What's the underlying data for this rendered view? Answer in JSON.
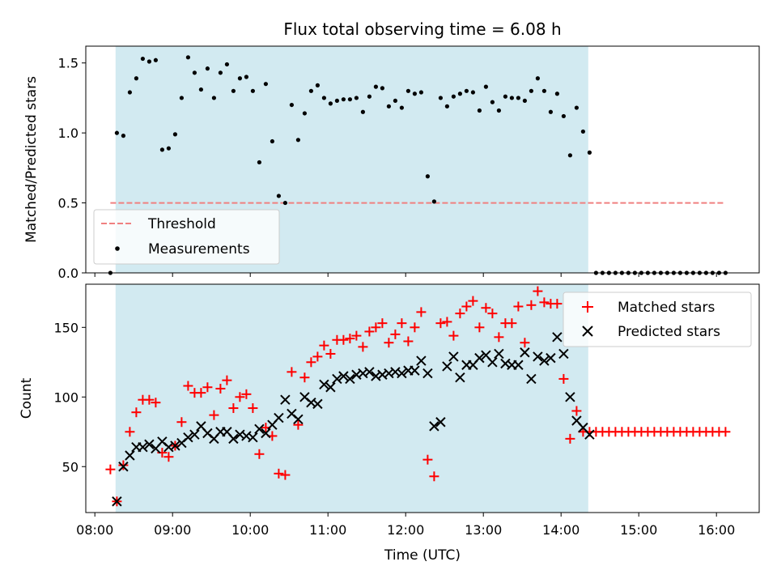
{
  "title": "Flux total observing time = 6.08 h",
  "chart_data": [
    {
      "type": "scatter",
      "ylabel": "Matched/Predicted stars",
      "ylim": [
        0,
        1.62
      ],
      "yticks": [
        "0.0",
        "0.5",
        "1.0",
        "1.5"
      ],
      "ytick_values": [
        0,
        0.5,
        1.0,
        1.5
      ],
      "xlim": [
        "07:53",
        "16:33"
      ],
      "shaded_span": [
        "08:16",
        "14:21"
      ],
      "shade_color": "#add8e6",
      "threshold": {
        "name": "Threshold",
        "value": 0.5,
        "x_range": [
          "08:12",
          "16:07"
        ],
        "color": "#f08080"
      },
      "legend": {
        "placement": "lower-left",
        "entries": [
          "Threshold",
          "Measurements"
        ]
      },
      "series": [
        {
          "name": "Measurements",
          "marker": "dot",
          "color": "#000000",
          "x": [
            "08:12",
            "08:17",
            "08:22",
            "08:27",
            "08:32",
            "08:37",
            "08:42",
            "08:47",
            "08:52",
            "08:57",
            "09:02",
            "09:07",
            "09:12",
            "09:17",
            "09:22",
            "09:27",
            "09:32",
            "09:37",
            "09:42",
            "09:47",
            "09:52",
            "09:57",
            "10:02",
            "10:07",
            "10:12",
            "10:17",
            "10:22",
            "10:27",
            "10:32",
            "10:37",
            "10:42",
            "10:47",
            "10:52",
            "10:57",
            "11:02",
            "11:07",
            "11:12",
            "11:17",
            "11:22",
            "11:27",
            "11:32",
            "11:37",
            "11:42",
            "11:47",
            "11:52",
            "11:57",
            "12:02",
            "12:07",
            "12:12",
            "12:17",
            "12:22",
            "12:27",
            "12:32",
            "12:37",
            "12:42",
            "12:47",
            "12:52",
            "12:57",
            "13:02",
            "13:07",
            "13:12",
            "13:17",
            "13:22",
            "13:27",
            "13:32",
            "13:37",
            "13:42",
            "13:47",
            "13:52",
            "13:57",
            "14:02",
            "14:07",
            "14:12",
            "14:17",
            "14:22",
            "14:27",
            "14:32",
            "14:37",
            "14:42",
            "14:47",
            "14:52",
            "14:57",
            "15:02",
            "15:07",
            "15:12",
            "15:17",
            "15:22",
            "15:27",
            "15:32",
            "15:37",
            "15:42",
            "15:47",
            "15:52",
            "15:57",
            "16:02",
            "16:07"
          ],
          "y": [
            0.0,
            1.0,
            0.98,
            1.29,
            1.39,
            1.53,
            1.51,
            1.52,
            0.88,
            0.89,
            0.99,
            1.25,
            1.54,
            1.43,
            1.31,
            1.46,
            1.25,
            1.43,
            1.49,
            1.3,
            1.39,
            1.4,
            1.3,
            0.79,
            1.35,
            0.94,
            0.55,
            0.5,
            1.2,
            0.95,
            1.14,
            1.3,
            1.34,
            1.25,
            1.21,
            1.23,
            1.24,
            1.24,
            1.25,
            1.15,
            1.26,
            1.33,
            1.32,
            1.19,
            1.23,
            1.18,
            1.3,
            1.28,
            1.29,
            0.69,
            0.51,
            1.25,
            1.19,
            1.26,
            1.28,
            1.3,
            1.29,
            1.16,
            1.33,
            1.22,
            1.16,
            1.26,
            1.25,
            1.25,
            1.23,
            1.3,
            1.39,
            1.3,
            1.15,
            1.28,
            1.12,
            0.84,
            1.18,
            1.01,
            0.86,
            0.0,
            0.0,
            0.0,
            0.0,
            0.0,
            0.0,
            0.0,
            0.0,
            0.0,
            0.0,
            0.0,
            0.0,
            0.0,
            0.0,
            0.0,
            0.0,
            0.0,
            0.0,
            0.0,
            0.0,
            0.0
          ]
        }
      ]
    },
    {
      "type": "scatter",
      "xlabel": "Time (UTC)",
      "ylabel": "Count",
      "ylim": [
        17,
        181
      ],
      "yticks": [
        "50",
        "100",
        "150"
      ],
      "ytick_values": [
        50,
        100,
        150
      ],
      "xlim": [
        "07:53",
        "16:33"
      ],
      "xticks": [
        "08:00",
        "09:00",
        "10:00",
        "11:00",
        "12:00",
        "13:00",
        "14:00",
        "15:00",
        "16:00"
      ],
      "shaded_span": [
        "08:16",
        "14:21"
      ],
      "shade_color": "#add8e6",
      "legend": {
        "placement": "upper-right",
        "entries": [
          "Matched stars",
          "Predicted stars"
        ]
      },
      "series": [
        {
          "name": "Matched stars",
          "marker": "plus",
          "color": "#ff0000",
          "x": [
            "08:12",
            "08:17",
            "08:22",
            "08:27",
            "08:32",
            "08:37",
            "08:42",
            "08:47",
            "08:52",
            "08:57",
            "09:02",
            "09:07",
            "09:12",
            "09:17",
            "09:22",
            "09:27",
            "09:32",
            "09:37",
            "09:42",
            "09:47",
            "09:52",
            "09:57",
            "10:02",
            "10:07",
            "10:12",
            "10:17",
            "10:22",
            "10:27",
            "10:32",
            "10:37",
            "10:42",
            "10:47",
            "10:52",
            "10:57",
            "11:02",
            "11:07",
            "11:12",
            "11:17",
            "11:22",
            "11:27",
            "11:32",
            "11:37",
            "11:42",
            "11:47",
            "11:52",
            "11:57",
            "12:02",
            "12:07",
            "12:12",
            "12:17",
            "12:22",
            "12:27",
            "12:32",
            "12:37",
            "12:42",
            "12:47",
            "12:52",
            "12:57",
            "13:02",
            "13:07",
            "13:12",
            "13:17",
            "13:22",
            "13:27",
            "13:32",
            "13:37",
            "13:42",
            "13:47",
            "13:52",
            "13:57",
            "14:02",
            "14:07",
            "14:12",
            "14:17",
            "14:22",
            "14:27",
            "14:32",
            "14:37",
            "14:42",
            "14:47",
            "14:52",
            "14:57",
            "15:02",
            "15:07",
            "15:12",
            "15:17",
            "15:22",
            "15:27",
            "15:32",
            "15:37",
            "15:42",
            "15:47",
            "15:52",
            "15:57",
            "16:02",
            "16:07"
          ],
          "y": [
            48,
            25,
            51,
            75,
            89,
            98,
            98,
            96,
            60,
            57,
            65,
            82,
            108,
            103,
            103,
            107,
            87,
            106,
            112,
            92,
            100,
            102,
            92,
            59,
            78,
            72,
            45,
            44,
            118,
            80,
            114,
            125,
            129,
            137,
            131,
            141,
            141,
            142,
            144,
            136,
            147,
            150,
            153,
            139,
            145,
            153,
            140,
            150,
            161,
            55,
            43,
            153,
            154,
            144,
            160,
            165,
            169,
            150,
            164,
            160,
            143,
            153,
            153,
            165,
            139,
            166,
            176,
            168,
            167,
            167,
            113,
            70,
            90,
            75,
            75,
            75,
            75,
            75,
            75,
            75,
            75,
            75,
            75,
            75,
            75,
            75,
            75,
            75,
            75,
            75,
            75,
            75,
            75,
            75,
            75,
            75
          ]
        },
        {
          "name": "Predicted stars",
          "marker": "x",
          "color": "#000000",
          "x": [
            "08:17",
            "08:22",
            "08:27",
            "08:32",
            "08:37",
            "08:42",
            "08:47",
            "08:52",
            "08:57",
            "09:02",
            "09:07",
            "09:12",
            "09:17",
            "09:22",
            "09:27",
            "09:32",
            "09:37",
            "09:42",
            "09:47",
            "09:52",
            "09:57",
            "10:02",
            "10:07",
            "10:12",
            "10:17",
            "10:22",
            "10:27",
            "10:32",
            "10:37",
            "10:42",
            "10:47",
            "10:52",
            "10:57",
            "11:02",
            "11:07",
            "11:12",
            "11:17",
            "11:22",
            "11:27",
            "11:32",
            "11:37",
            "11:42",
            "11:47",
            "11:52",
            "11:57",
            "12:02",
            "12:07",
            "12:12",
            "12:17",
            "12:22",
            "12:27",
            "12:32",
            "12:37",
            "12:42",
            "12:47",
            "12:52",
            "12:57",
            "13:02",
            "13:07",
            "13:12",
            "13:17",
            "13:22",
            "13:27",
            "13:32",
            "13:37",
            "13:42",
            "13:47",
            "13:52",
            "13:57",
            "14:02",
            "14:07",
            "14:12",
            "14:17",
            "14:22"
          ],
          "y": [
            25,
            50,
            58,
            64,
            64,
            66,
            63,
            68,
            64,
            65,
            67,
            71,
            73,
            79,
            74,
            70,
            75,
            75,
            70,
            73,
            72,
            71,
            77,
            74,
            80,
            85,
            98,
            88,
            84,
            100,
            96,
            95,
            109,
            107,
            113,
            115,
            113,
            116,
            117,
            118,
            115,
            116,
            117,
            118,
            117,
            119,
            119,
            126,
            117,
            79,
            82,
            122,
            129,
            114,
            123,
            123,
            128,
            130,
            125,
            131,
            124,
            123,
            123,
            132,
            113,
            129,
            126,
            128,
            143,
            131,
            100,
            83,
            78,
            73
          ]
        }
      ]
    }
  ]
}
